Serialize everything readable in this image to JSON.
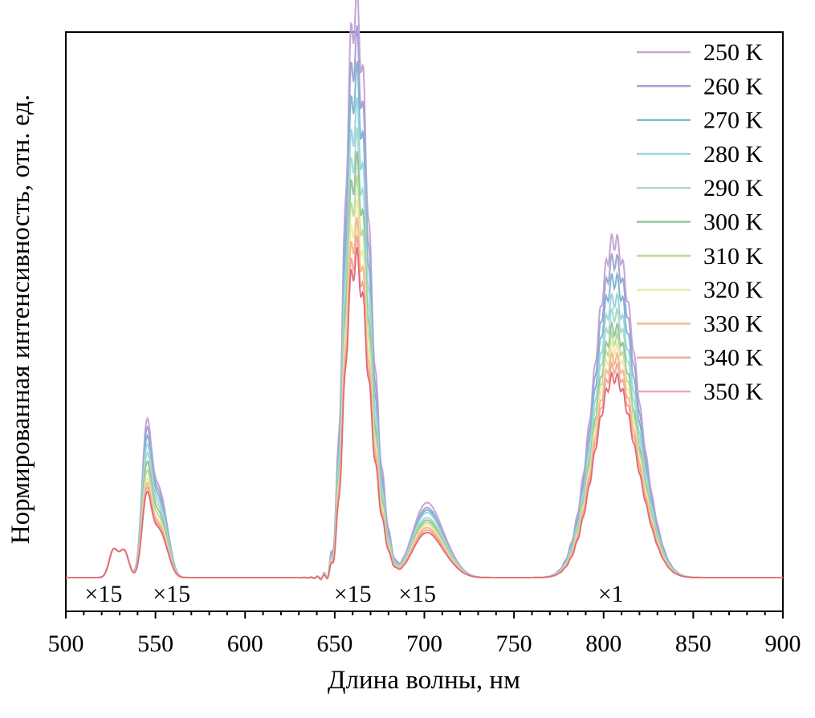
{
  "chart_data": {
    "type": "line",
    "title": "",
    "xlabel": "Длина волны, нм",
    "ylabel": "Нормированная интенсивность, отн. ед.",
    "xlim": [
      500,
      900
    ],
    "ylim": [
      0,
      1.05
    ],
    "x_ticks": [
      "500",
      "550",
      "600",
      "650",
      "700",
      "750",
      "800",
      "850",
      "900"
    ],
    "y_ticks_labeled": false,
    "grid": false,
    "legend_position": "top-right",
    "annotations": [
      {
        "text": "×15",
        "x": 521
      },
      {
        "text": "×15",
        "x": 559
      },
      {
        "text": "×15",
        "x": 660
      },
      {
        "text": "×15",
        "x": 696
      },
      {
        "text": "×1",
        "x": 804
      }
    ],
    "peak_model": {
      "x": [
        500,
        520,
        527,
        530,
        533,
        540,
        545,
        550,
        555,
        560,
        570,
        600,
        640,
        650,
        655,
        660,
        664,
        670,
        675,
        680,
        685,
        690,
        695,
        700,
        705,
        710,
        720,
        740,
        760,
        780,
        790,
        800,
        805,
        810,
        820,
        830,
        840,
        850,
        870,
        900
      ],
      "note": "each series y = base shape scaled by series peak heights"
    },
    "series": [
      {
        "name": "250 K",
        "color": "#c4a5d6",
        "peaks": {
          "p545": 0.37,
          "p660": 0.99,
          "p700": 0.15,
          "p805": 0.69
        }
      },
      {
        "name": "260 K",
        "color": "#a4a4d2",
        "peaks": {
          "p545": 0.35,
          "p660": 0.92,
          "p700": 0.14,
          "p805": 0.65
        }
      },
      {
        "name": "270 K",
        "color": "#7fb6d4",
        "peaks": {
          "p545": 0.33,
          "p660": 0.86,
          "p700": 0.135,
          "p805": 0.61
        }
      },
      {
        "name": "280 K",
        "color": "#9fd3de",
        "peaks": {
          "p545": 0.31,
          "p660": 0.8,
          "p700": 0.13,
          "p805": 0.57
        }
      },
      {
        "name": "290 K",
        "color": "#a6dccd",
        "peaks": {
          "p545": 0.29,
          "p660": 0.75,
          "p700": 0.12,
          "p805": 0.54
        }
      },
      {
        "name": "300 K",
        "color": "#92c59a",
        "peaks": {
          "p545": 0.27,
          "p660": 0.71,
          "p700": 0.115,
          "p805": 0.51
        }
      },
      {
        "name": "310 K",
        "color": "#bcdc9c",
        "peaks": {
          "p545": 0.25,
          "p660": 0.67,
          "p700": 0.11,
          "p805": 0.49
        }
      },
      {
        "name": "320 K",
        "color": "#eeeaa8",
        "peaks": {
          "p545": 0.23,
          "p660": 0.63,
          "p700": 0.105,
          "p805": 0.47
        }
      },
      {
        "name": "330 K",
        "color": "#f5b98a",
        "peaks": {
          "p545": 0.22,
          "p660": 0.6,
          "p700": 0.1,
          "p805": 0.45
        }
      },
      {
        "name": "340 K",
        "color": "#f3a7a0",
        "peaks": {
          "p545": 0.21,
          "p660": 0.57,
          "p700": 0.095,
          "p805": 0.43
        }
      },
      {
        "name": "350 K",
        "color": "#eea3c6",
        "peaks": {
          "p545": 0.2,
          "p660": 0.55,
          "p700": 0.09,
          "p805": 0.41
        }
      }
    ]
  }
}
